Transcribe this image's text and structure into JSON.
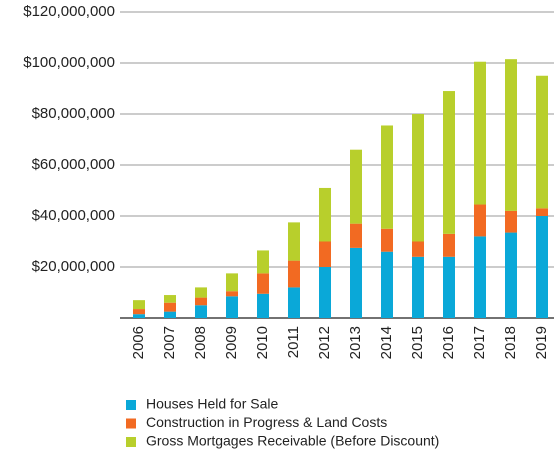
{
  "chart_data": {
    "type": "bar",
    "stacked": true,
    "categories": [
      "2006",
      "2007",
      "2008",
      "2009",
      "2010",
      "2011",
      "2012",
      "2013",
      "2014",
      "2015",
      "2016",
      "2017",
      "2018",
      "2019"
    ],
    "series": [
      {
        "name": "Houses Held for Sale",
        "color": "#0aa8d8",
        "values": [
          1500000,
          2500000,
          5000000,
          8500000,
          9500000,
          12000000,
          20000000,
          27500000,
          26000000,
          24000000,
          24000000,
          32000000,
          33500000,
          40000000
        ]
      },
      {
        "name": "Construction in Progress & Land Costs",
        "color": "#f26a22",
        "values": [
          2000000,
          3500000,
          3000000,
          2000000,
          8000000,
          10500000,
          10000000,
          9500000,
          9000000,
          6000000,
          9000000,
          12500000,
          8500000,
          3000000
        ]
      },
      {
        "name": "Gross Mortgages Receivable (Before Discount)",
        "color": "#b8cf2c",
        "values": [
          3500000,
          3000000,
          4000000,
          7000000,
          9000000,
          15000000,
          21000000,
          29000000,
          40500000,
          50000000,
          56000000,
          56000000,
          59500000,
          52000000
        ]
      }
    ],
    "ylim": [
      0,
      120000000
    ],
    "yticks": [
      {
        "value": 20000000,
        "label": "$20,000,000"
      },
      {
        "value": 40000000,
        "label": "$40,000,000"
      },
      {
        "value": 60000000,
        "label": "$60,000,000"
      },
      {
        "value": 80000000,
        "label": "$80,000,000"
      },
      {
        "value": 100000000,
        "label": "$100,000,000"
      },
      {
        "value": 120000000,
        "label": "$120,000,000"
      }
    ],
    "grid": true,
    "legend": "bottom"
  }
}
